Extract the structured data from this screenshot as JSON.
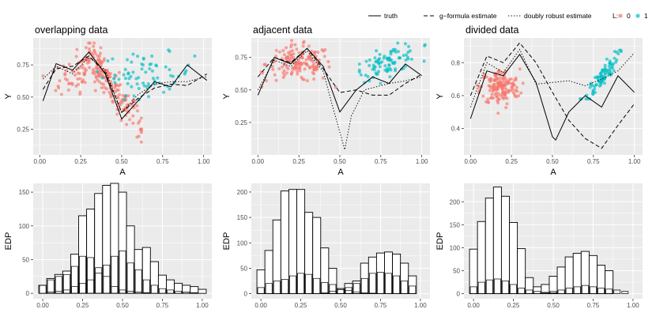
{
  "legend": {
    "line_items": [
      {
        "label": "truth",
        "dash": "solid"
      },
      {
        "label": "g−formula estimate",
        "dash": "dashed"
      },
      {
        "label": "doubly robust estimate",
        "dash": "dotted"
      }
    ],
    "color_title": "L:",
    "color_items": [
      {
        "label": "0",
        "color": "#F8766D"
      },
      {
        "label": "1",
        "color": "#00BFC4"
      }
    ]
  },
  "chart_data": [
    {
      "type": "scatter+line",
      "title": "overlapping data",
      "xlabel": "A",
      "ylabel": "Y",
      "xlim": [
        -0.04,
        1.05
      ],
      "ylim": [
        0.05,
        0.96
      ],
      "xticks": [
        0,
        0.25,
        0.5,
        0.75,
        1
      ],
      "xticklabels": [
        "0.00",
        "0.25",
        "0.50",
        "0.75",
        "1.00"
      ],
      "yticks": [
        0.25,
        0.5,
        0.75
      ],
      "yticklabels": [
        "0.25",
        "0.50",
        "0.75"
      ],
      "clusters": [
        {
          "group": "0",
          "n": 230,
          "pattern": "overlap0"
        },
        {
          "group": "1",
          "n": 70,
          "pattern": "overlap1"
        }
      ],
      "series": [
        {
          "name": "truth",
          "dash": "solid",
          "x": [
            0.02,
            0.1,
            0.2,
            0.3,
            0.4,
            0.5,
            0.6,
            0.7,
            0.8,
            0.9,
            1.02
          ],
          "y": [
            0.47,
            0.76,
            0.71,
            0.85,
            0.68,
            0.33,
            0.47,
            0.62,
            0.58,
            0.75,
            0.63
          ]
        },
        {
          "name": "g−formula estimate",
          "dash": "dashed",
          "x": [
            0.02,
            0.1,
            0.2,
            0.3,
            0.4,
            0.5,
            0.6,
            0.7,
            0.8,
            0.9,
            1.02
          ],
          "y": [
            0.56,
            0.72,
            0.74,
            0.82,
            0.69,
            0.38,
            0.49,
            0.57,
            0.6,
            0.59,
            0.68
          ]
        },
        {
          "name": "doubly robust estimate",
          "dash": "dotted",
          "x": [
            0.02,
            0.1,
            0.2,
            0.3,
            0.4,
            0.5,
            0.6,
            0.7,
            0.8,
            0.9,
            1.02
          ],
          "y": [
            0.64,
            0.74,
            0.68,
            0.81,
            0.71,
            0.38,
            0.52,
            0.6,
            0.62,
            0.62,
            0.66
          ]
        }
      ]
    },
    {
      "type": "scatter+line",
      "title": "adjacent data",
      "xlabel": "A",
      "ylabel": "Y",
      "xlim": [
        -0.04,
        1.05
      ],
      "ylim": [
        0.0,
        0.9
      ],
      "xticks": [
        0,
        0.25,
        0.5,
        0.75,
        1
      ],
      "xticklabels": [
        "0.00",
        "0.25",
        "0.50",
        "0.75",
        "1.00"
      ],
      "yticks": [
        0.25,
        0.5,
        0.75
      ],
      "yticklabels": [
        "0.25",
        "0.50",
        "0.75"
      ],
      "clusters": [
        {
          "group": "0",
          "n": 150,
          "pattern": "adjacent0"
        },
        {
          "group": "1",
          "n": 90,
          "pattern": "adjacent1"
        }
      ],
      "series": [
        {
          "name": "truth",
          "dash": "solid",
          "x": [
            0.0,
            0.1,
            0.2,
            0.3,
            0.4,
            0.5,
            0.6,
            0.7,
            0.8,
            0.9,
            1.0
          ],
          "y": [
            0.46,
            0.75,
            0.7,
            0.82,
            0.68,
            0.33,
            0.5,
            0.6,
            0.55,
            0.7,
            0.61
          ]
        },
        {
          "name": "g−formula estimate",
          "dash": "dashed",
          "x": [
            0.0,
            0.1,
            0.2,
            0.3,
            0.4,
            0.5,
            0.6,
            0.7,
            0.8,
            0.9,
            1.0
          ],
          "y": [
            0.6,
            0.75,
            0.71,
            0.82,
            0.66,
            0.48,
            0.5,
            0.46,
            0.46,
            0.55,
            0.62
          ]
        },
        {
          "name": "doubly robust estimate",
          "dash": "dotted",
          "x": [
            0.0,
            0.1,
            0.2,
            0.3,
            0.4,
            0.45,
            0.53,
            0.57,
            0.65,
            0.8,
            0.9,
            1.0
          ],
          "y": [
            0.5,
            0.73,
            0.68,
            0.8,
            0.64,
            0.4,
            0.04,
            0.3,
            0.5,
            0.55,
            0.57,
            0.6
          ]
        }
      ]
    },
    {
      "type": "scatter+line",
      "title": "divided data",
      "xlabel": "A",
      "ylabel": "Y",
      "xlim": [
        -0.04,
        1.05
      ],
      "ylim": [
        0.24,
        0.95
      ],
      "xticks": [
        0,
        0.25,
        0.5,
        0.75,
        1
      ],
      "xticklabels": [
        "0.00",
        "0.25",
        "0.50",
        "0.75",
        "1.00"
      ],
      "yticks": [
        0.4,
        0.6,
        0.8
      ],
      "yticklabels": [
        "0.4",
        "0.6",
        "0.8"
      ],
      "clusters": [
        {
          "group": "0",
          "n": 160,
          "pattern": "divided0"
        },
        {
          "group": "1",
          "n": 90,
          "pattern": "divided1"
        }
      ],
      "series": [
        {
          "name": "truth",
          "dash": "solid",
          "x": [
            0.0,
            0.1,
            0.2,
            0.3,
            0.4,
            0.5,
            0.52,
            0.6,
            0.7,
            0.8,
            0.9,
            1.0
          ],
          "y": [
            0.46,
            0.75,
            0.72,
            0.85,
            0.68,
            0.35,
            0.33,
            0.5,
            0.6,
            0.53,
            0.72,
            0.62
          ]
        },
        {
          "name": "g−formula estimate",
          "dash": "dashed",
          "x": [
            0.0,
            0.1,
            0.2,
            0.3,
            0.4,
            0.5,
            0.6,
            0.7,
            0.8,
            0.9,
            1.0
          ],
          "y": [
            0.6,
            0.84,
            0.8,
            0.92,
            0.8,
            0.62,
            0.45,
            0.34,
            0.28,
            0.42,
            0.55
          ]
        },
        {
          "name": "doubly robust estimate",
          "dash": "dotted",
          "x": [
            0.0,
            0.1,
            0.2,
            0.3,
            0.4,
            0.5,
            0.6,
            0.7,
            0.8,
            0.9,
            1.0
          ],
          "y": [
            0.53,
            0.8,
            0.74,
            0.88,
            0.67,
            0.68,
            0.69,
            0.66,
            0.7,
            0.75,
            0.86
          ]
        }
      ]
    },
    {
      "type": "histogram",
      "title": "",
      "xlabel": "",
      "ylabel": "EDP",
      "xlim": [
        -0.06,
        1.06
      ],
      "ylim": [
        -8,
        163
      ],
      "xticks": [
        0,
        0.25,
        0.5,
        0.75,
        1
      ],
      "xticklabels": [
        "0.00",
        "0.25",
        "0.50",
        "0.75",
        "1.00"
      ],
      "yticks": [
        0,
        50,
        100,
        150
      ],
      "yticklabels": [
        "0",
        "50",
        "100",
        "150"
      ],
      "bins": [
        0.0,
        0.05,
        0.1,
        0.15,
        0.2,
        0.25,
        0.3,
        0.35,
        0.4,
        0.45,
        0.5,
        0.55,
        0.6,
        0.65,
        0.7,
        0.75,
        0.8,
        0.85,
        0.9,
        0.95,
        1.0
      ],
      "series": [
        {
          "name": "L=0",
          "values": [
            12,
            20,
            25,
            28,
            40,
            55,
            53,
            38,
            25,
            10,
            5,
            3,
            2,
            1,
            0,
            0,
            0,
            0,
            0,
            0,
            0
          ]
        },
        {
          "name": "L=1",
          "values": [
            0,
            2,
            3,
            5,
            10,
            15,
            20,
            30,
            42,
            55,
            63,
            45,
            35,
            20,
            12,
            7,
            5,
            3,
            2,
            1,
            0
          ]
        },
        {
          "name": "total",
          "values": [
            12,
            22,
            28,
            33,
            58,
            115,
            125,
            148,
            160,
            163,
            150,
            100,
            65,
            68,
            47,
            27,
            20,
            15,
            12,
            10,
            6
          ]
        }
      ]
    },
    {
      "type": "histogram",
      "title": "",
      "xlabel": "",
      "ylabel": "EDP",
      "xlim": [
        -0.06,
        1.06
      ],
      "ylim": [
        -10,
        217
      ],
      "xticks": [
        0,
        0.25,
        0.5,
        0.75,
        1
      ],
      "xticklabels": [
        "0.00",
        "0.25",
        "0.50",
        "0.75",
        "1.00"
      ],
      "yticks": [
        0,
        50,
        100,
        150,
        200
      ],
      "yticklabels": [
        "0",
        "50",
        "100",
        "150",
        "200"
      ],
      "bins": [
        0.0,
        0.05,
        0.1,
        0.15,
        0.2,
        0.25,
        0.3,
        0.35,
        0.4,
        0.45,
        0.5,
        0.55,
        0.6,
        0.65,
        0.7,
        0.75,
        0.8,
        0.85,
        0.9,
        0.95,
        1.0
      ],
      "series": [
        {
          "name": "L=0",
          "values": [
            12,
            20,
            25,
            28,
            35,
            40,
            38,
            30,
            22,
            18,
            10,
            6,
            3,
            2,
            1,
            0,
            0,
            0,
            0,
            0,
            0
          ]
        },
        {
          "name": "L=1",
          "values": [
            0,
            0,
            0,
            0,
            0,
            0,
            0,
            0,
            2,
            5,
            8,
            12,
            20,
            30,
            40,
            42,
            40,
            35,
            25,
            15,
            0
          ]
        },
        {
          "name": "total",
          "values": [
            47,
            85,
            145,
            202,
            205,
            205,
            160,
            150,
            90,
            50,
            10,
            20,
            25,
            60,
            72,
            80,
            82,
            78,
            60,
            35,
            0
          ]
        }
      ]
    },
    {
      "type": "histogram",
      "title": "",
      "xlabel": "",
      "ylabel": "EDP",
      "xlim": [
        -0.06,
        1.06
      ],
      "ylim": [
        -11,
        240
      ],
      "xticks": [
        0,
        0.25,
        0.5,
        0.75,
        1
      ],
      "xticklabels": [
        "0.00",
        "0.25",
        "0.50",
        "0.75",
        "1.00"
      ],
      "yticks": [
        0,
        50,
        100,
        150,
        200
      ],
      "yticklabels": [
        "0",
        "50",
        "100",
        "150",
        "200"
      ],
      "bins": [
        0.0,
        0.05,
        0.1,
        0.15,
        0.2,
        0.25,
        0.3,
        0.35,
        0.4,
        0.45,
        0.5,
        0.55,
        0.6,
        0.65,
        0.7,
        0.75,
        0.8,
        0.85,
        0.9,
        0.95,
        1.0
      ],
      "series": [
        {
          "name": "L=0",
          "values": [
            15,
            25,
            30,
            32,
            28,
            20,
            12,
            8,
            5,
            3,
            2,
            0,
            0,
            0,
            0,
            0,
            0,
            0,
            0,
            0,
            0
          ]
        },
        {
          "name": "L=1",
          "values": [
            0,
            0,
            0,
            0,
            0,
            0,
            0,
            0,
            0,
            2,
            5,
            8,
            12,
            15,
            18,
            15,
            12,
            10,
            8,
            5,
            0
          ]
        },
        {
          "name": "total",
          "values": [
            97,
            157,
            208,
            232,
            212,
            155,
            98,
            35,
            15,
            20,
            38,
            58,
            80,
            88,
            92,
            83,
            62,
            50,
            0,
            0,
            0
          ]
        }
      ]
    }
  ]
}
